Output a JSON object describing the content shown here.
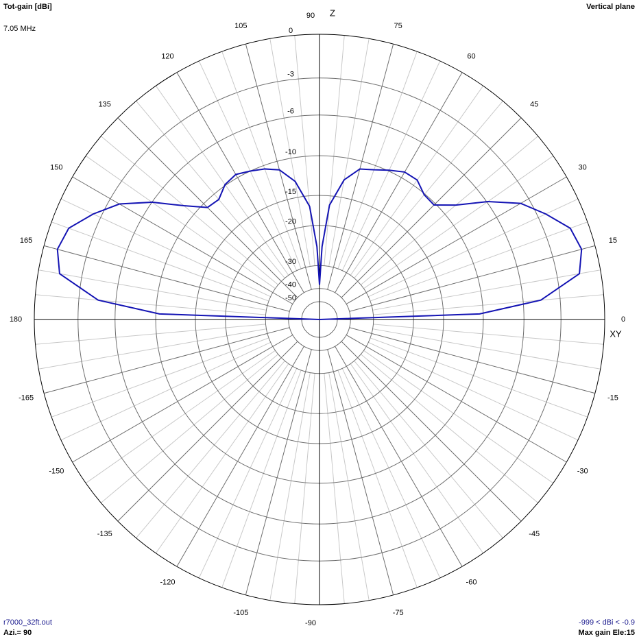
{
  "chart_data": {
    "type": "polar",
    "title": "Tot-gain [dBi]",
    "subtitle": "7.05 MHz",
    "plane_label": "Vertical plane",
    "z_label": "Z",
    "xy_label": "XY",
    "file_label": "r7000_32ft.out",
    "azimuth_label": "Azi.= 90",
    "range_label": "-999 < dBi < -0.9",
    "max_gain_label": "Max gain Ele:15",
    "x": [
      0,
      2,
      5,
      10,
      15,
      20,
      25,
      30,
      35,
      40,
      45,
      50,
      55,
      60,
      65,
      70,
      75,
      80,
      85,
      88,
      90,
      92,
      95,
      100,
      105,
      110,
      115,
      120,
      125,
      130,
      135,
      140,
      145,
      150,
      155,
      160,
      165,
      170,
      175,
      178,
      180
    ],
    "values": [
      -999,
      -10.4,
      -4.5,
      -1.4,
      -0.9,
      -1.2,
      -2.4,
      -3.7,
      -5.9,
      -8.5,
      -10.2,
      -10.1,
      -9.3,
      -9.3,
      -9.9,
      -10.5,
      -10.9,
      -12.6,
      -16.4,
      -24.6,
      -38,
      -24.6,
      -16.6,
      -12.8,
      -11.0,
      -10.4,
      -10.0,
      -9.6,
      -9.9,
      -10.8,
      -10.6,
      -8.6,
      -6.0,
      -3.8,
      -2.4,
      -1.2,
      -0.9,
      -1.4,
      -4.5,
      -10.4,
      -999
    ],
    "color": "#1414b4",
    "rticks": [
      0,
      -3,
      -6,
      -10,
      -15,
      -20,
      -30,
      -40,
      -50
    ],
    "angle_ticks": [
      0,
      15,
      30,
      45,
      60,
      75,
      90,
      105,
      120,
      135,
      150,
      165,
      180,
      -165,
      -150,
      -135,
      -120,
      -105,
      -90,
      -75,
      -60,
      -45,
      -30,
      -15
    ],
    "grid": true
  }
}
